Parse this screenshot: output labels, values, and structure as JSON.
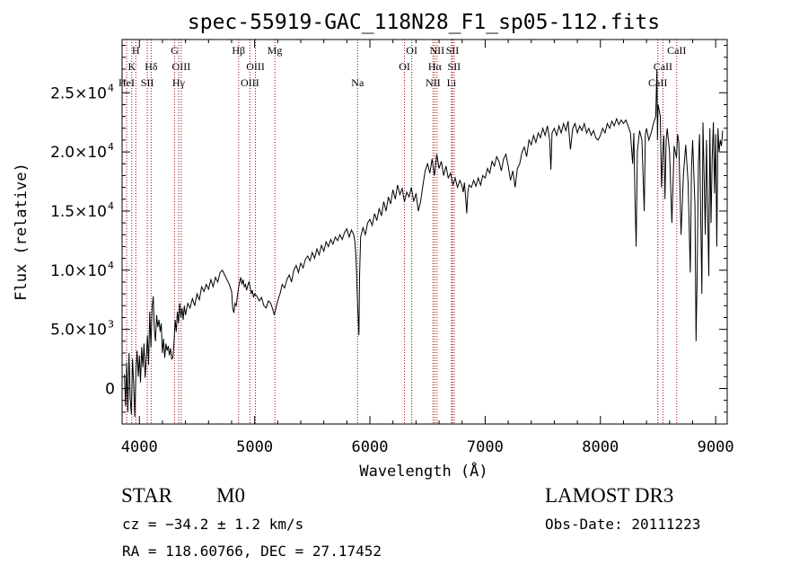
{
  "chart_data": {
    "type": "line",
    "title": "spec-55919-GAC_118N28_F1_sp05-112.fits",
    "xlabel": "Wavelength (Å)",
    "ylabel": "Flux (relative)",
    "xlim": [
      3850,
      9100
    ],
    "ylim": [
      -3000,
      29500
    ],
    "x_ticks": [
      {
        "value": 4000,
        "label": "4000"
      },
      {
        "value": 5000,
        "label": "5000"
      },
      {
        "value": 6000,
        "label": "6000"
      },
      {
        "value": 7000,
        "label": "7000"
      },
      {
        "value": 8000,
        "label": "8000"
      },
      {
        "value": 9000,
        "label": "9000"
      }
    ],
    "y_ticks": [
      {
        "value": 0,
        "mantissa": "0",
        "exponent": ""
      },
      {
        "value": 5000,
        "mantissa": "5.0×10",
        "exponent": "3"
      },
      {
        "value": 10000,
        "mantissa": "1.0×10",
        "exponent": "4"
      },
      {
        "value": 15000,
        "mantissa": "1.5×10",
        "exponent": "4"
      },
      {
        "value": 20000,
        "mantissa": "2.0×10",
        "exponent": "4"
      },
      {
        "value": 25000,
        "mantissa": "2.5×10",
        "exponent": "4"
      }
    ],
    "line_color": "#000000",
    "marker_color": "#a00000",
    "lines": [
      {
        "name": "H",
        "wavelength": 3969,
        "row": 0
      },
      {
        "name": "K",
        "wavelength": 3934,
        "row": 1
      },
      {
        "name": "HeI",
        "wavelength": 3889,
        "row": 2
      },
      {
        "name": "SII",
        "wavelength": 4069,
        "row": 2
      },
      {
        "name": "Hδ",
        "wavelength": 4102,
        "row": 1
      },
      {
        "name": "G",
        "wavelength": 4305,
        "row": 0
      },
      {
        "name": "OIII",
        "wavelength": 4363,
        "row": 1
      },
      {
        "name": "Hγ",
        "wavelength": 4340,
        "row": 2
      },
      {
        "name": "Hβ",
        "wavelength": 4861,
        "row": 0
      },
      {
        "name": "OIII",
        "wavelength": 5007,
        "row": 1
      },
      {
        "name": "OIII",
        "wavelength": 4959,
        "row": 2
      },
      {
        "name": "Mg",
        "wavelength": 5175,
        "row": 0
      },
      {
        "name": "Na",
        "wavelength": 5893,
        "row": 2
      },
      {
        "name": "OI",
        "wavelength": 6363,
        "row": 0
      },
      {
        "name": "OI",
        "wavelength": 6300,
        "row": 1
      },
      {
        "name": "NII",
        "wavelength": 6583,
        "row": 0
      },
      {
        "name": "SII",
        "wavelength": 6716,
        "row": 0
      },
      {
        "name": "Hα",
        "wavelength": 6563,
        "row": 1
      },
      {
        "name": "SII",
        "wavelength": 6731,
        "row": 1
      },
      {
        "name": "NII",
        "wavelength": 6548,
        "row": 2
      },
      {
        "name": "Li",
        "wavelength": 6708,
        "row": 2
      },
      {
        "name": "CaII",
        "wavelength": 8662,
        "row": 0
      },
      {
        "name": "CaII",
        "wavelength": 8542,
        "row": 1
      },
      {
        "name": "CaII",
        "wavelength": 8498,
        "row": 2
      }
    ],
    "spectrum": [
      [
        3870,
        1200
      ],
      [
        3880,
        -1500
      ],
      [
        3890,
        2200
      ],
      [
        3900,
        -2000
      ],
      [
        3910,
        3000
      ],
      [
        3920,
        -800
      ],
      [
        3930,
        -2200
      ],
      [
        3940,
        2500
      ],
      [
        3950,
        500
      ],
      [
        3960,
        -2400
      ],
      [
        3970,
        1500
      ],
      [
        3980,
        3200
      ],
      [
        3990,
        1000
      ],
      [
        4000,
        2800
      ],
      [
        4010,
        500
      ],
      [
        4020,
        3500
      ],
      [
        4030,
        1800
      ],
      [
        4040,
        3800
      ],
      [
        4050,
        900
      ],
      [
        4060,
        2600
      ],
      [
        4070,
        4500
      ],
      [
        4080,
        2000
      ],
      [
        4090,
        6500
      ],
      [
        4100,
        3500
      ],
      [
        4110,
        6800
      ],
      [
        4120,
        7800
      ],
      [
        4130,
        5000
      ],
      [
        4140,
        4000
      ],
      [
        4150,
        6200
      ],
      [
        4160,
        5200
      ],
      [
        4170,
        5800
      ],
      [
        4180,
        4800
      ],
      [
        4190,
        5500
      ],
      [
        4200,
        3000
      ],
      [
        4210,
        4200
      ],
      [
        4220,
        2600
      ],
      [
        4230,
        3800
      ],
      [
        4240,
        3200
      ],
      [
        4250,
        3600
      ],
      [
        4260,
        2800
      ],
      [
        4270,
        3400
      ],
      [
        4280,
        2500
      ],
      [
        4290,
        2600
      ],
      [
        4300,
        3800
      ],
      [
        4310,
        5800
      ],
      [
        4320,
        4800
      ],
      [
        4330,
        6500
      ],
      [
        4340,
        5500
      ],
      [
        4350,
        7200
      ],
      [
        4360,
        6000
      ],
      [
        4370,
        6800
      ],
      [
        4380,
        5800
      ],
      [
        4390,
        7000
      ],
      [
        4400,
        6200
      ],
      [
        4420,
        7200
      ],
      [
        4440,
        6800
      ],
      [
        4460,
        7600
      ],
      [
        4480,
        7000
      ],
      [
        4500,
        8000
      ],
      [
        4520,
        7500
      ],
      [
        4540,
        8600
      ],
      [
        4560,
        8200
      ],
      [
        4580,
        8800
      ],
      [
        4600,
        8400
      ],
      [
        4620,
        9200
      ],
      [
        4640,
        8600
      ],
      [
        4660,
        9400
      ],
      [
        4680,
        9000
      ],
      [
        4700,
        9800
      ],
      [
        4720,
        10000
      ],
      [
        4740,
        9600
      ],
      [
        4760,
        9200
      ],
      [
        4780,
        8800
      ],
      [
        4800,
        8200
      ],
      [
        4810,
        6800
      ],
      [
        4820,
        6400
      ],
      [
        4830,
        7200
      ],
      [
        4840,
        7000
      ],
      [
        4850,
        7800
      ],
      [
        4860,
        8500
      ],
      [
        4870,
        9000
      ],
      [
        4880,
        9400
      ],
      [
        4890,
        8800
      ],
      [
        4900,
        9200
      ],
      [
        4910,
        8600
      ],
      [
        4920,
        8800
      ],
      [
        4930,
        8300
      ],
      [
        4940,
        8700
      ],
      [
        4950,
        9000
      ],
      [
        4960,
        8600
      ],
      [
        4970,
        8000
      ],
      [
        4980,
        8300
      ],
      [
        4990,
        7700
      ],
      [
        5000,
        8000
      ],
      [
        5020,
        7800
      ],
      [
        5040,
        7400
      ],
      [
        5060,
        7700
      ],
      [
        5080,
        7000
      ],
      [
        5100,
        6800
      ],
      [
        5120,
        7400
      ],
      [
        5140,
        7200
      ],
      [
        5160,
        6600
      ],
      [
        5170,
        6200
      ],
      [
        5180,
        6600
      ],
      [
        5190,
        7000
      ],
      [
        5200,
        7400
      ],
      [
        5220,
        8000
      ],
      [
        5240,
        8800
      ],
      [
        5260,
        8500
      ],
      [
        5280,
        9200
      ],
      [
        5300,
        9600
      ],
      [
        5320,
        9000
      ],
      [
        5340,
        10000
      ],
      [
        5360,
        10400
      ],
      [
        5380,
        9800
      ],
      [
        5400,
        10600
      ],
      [
        5420,
        10200
      ],
      [
        5440,
        10900
      ],
      [
        5460,
        11200
      ],
      [
        5480,
        10800
      ],
      [
        5500,
        11500
      ],
      [
        5520,
        11000
      ],
      [
        5540,
        11800
      ],
      [
        5560,
        11300
      ],
      [
        5580,
        12100
      ],
      [
        5600,
        11600
      ],
      [
        5620,
        12400
      ],
      [
        5640,
        12000
      ],
      [
        5660,
        12600
      ],
      [
        5680,
        12200
      ],
      [
        5700,
        12800
      ],
      [
        5720,
        12500
      ],
      [
        5740,
        13000
      ],
      [
        5760,
        12600
      ],
      [
        5780,
        13200
      ],
      [
        5800,
        13500
      ],
      [
        5820,
        12800
      ],
      [
        5840,
        13400
      ],
      [
        5860,
        13000
      ],
      [
        5870,
        12400
      ],
      [
        5880,
        11000
      ],
      [
        5890,
        8000
      ],
      [
        5900,
        5500
      ],
      [
        5905,
        4500
      ],
      [
        5910,
        9500
      ],
      [
        5920,
        12800
      ],
      [
        5940,
        13600
      ],
      [
        5960,
        13000
      ],
      [
        5980,
        14000
      ],
      [
        6000,
        14300
      ],
      [
        6020,
        13800
      ],
      [
        6040,
        14800
      ],
      [
        6060,
        14200
      ],
      [
        6080,
        15200
      ],
      [
        6100,
        14600
      ],
      [
        6120,
        15800
      ],
      [
        6140,
        15000
      ],
      [
        6160,
        16200
      ],
      [
        6180,
        15600
      ],
      [
        6200,
        16800
      ],
      [
        6220,
        16000
      ],
      [
        6240,
        17200
      ],
      [
        6260,
        16400
      ],
      [
        6280,
        16900
      ],
      [
        6300,
        15800
      ],
      [
        6320,
        16600
      ],
      [
        6340,
        16200
      ],
      [
        6360,
        17000
      ],
      [
        6380,
        15800
      ],
      [
        6400,
        16500
      ],
      [
        6420,
        15000
      ],
      [
        6440,
        15800
      ],
      [
        6460,
        17200
      ],
      [
        6480,
        18400
      ],
      [
        6500,
        19000
      ],
      [
        6520,
        18200
      ],
      [
        6540,
        19400
      ],
      [
        6560,
        18000
      ],
      [
        6580,
        19800
      ],
      [
        6600,
        18600
      ],
      [
        6620,
        19200
      ],
      [
        6640,
        18000
      ],
      [
        6660,
        18800
      ],
      [
        6680,
        17800
      ],
      [
        6700,
        18200
      ],
      [
        6720,
        17200
      ],
      [
        6740,
        17800
      ],
      [
        6760,
        17000
      ],
      [
        6780,
        17600
      ],
      [
        6800,
        17100
      ],
      [
        6810,
        16600
      ],
      [
        6820,
        17400
      ],
      [
        6830,
        16200
      ],
      [
        6840,
        14800
      ],
      [
        6850,
        16600
      ],
      [
        6860,
        17200
      ],
      [
        6880,
        17000
      ],
      [
        6900,
        17600
      ],
      [
        6920,
        17100
      ],
      [
        6940,
        17800
      ],
      [
        6960,
        17200
      ],
      [
        6980,
        18000
      ],
      [
        7000,
        17800
      ],
      [
        7020,
        18600
      ],
      [
        7040,
        18200
      ],
      [
        7060,
        19200
      ],
      [
        7080,
        18800
      ],
      [
        7100,
        19600
      ],
      [
        7120,
        19200
      ],
      [
        7140,
        18400
      ],
      [
        7160,
        19400
      ],
      [
        7180,
        19800
      ],
      [
        7200,
        18800
      ],
      [
        7220,
        17600
      ],
      [
        7240,
        18400
      ],
      [
        7260,
        17000
      ],
      [
        7280,
        18600
      ],
      [
        7300,
        19000
      ],
      [
        7320,
        20000
      ],
      [
        7340,
        20400
      ],
      [
        7360,
        19600
      ],
      [
        7380,
        21000
      ],
      [
        7400,
        20600
      ],
      [
        7420,
        21400
      ],
      [
        7440,
        20800
      ],
      [
        7460,
        21600
      ],
      [
        7480,
        21200
      ],
      [
        7500,
        22000
      ],
      [
        7520,
        21400
      ],
      [
        7540,
        22200
      ],
      [
        7560,
        21000
      ],
      [
        7570,
        18500
      ],
      [
        7580,
        21600
      ],
      [
        7600,
        22000
      ],
      [
        7620,
        21400
      ],
      [
        7640,
        22200
      ],
      [
        7660,
        21600
      ],
      [
        7680,
        22400
      ],
      [
        7700,
        21800
      ],
      [
        7720,
        22600
      ],
      [
        7740,
        20200
      ],
      [
        7760,
        22000
      ],
      [
        7780,
        22400
      ],
      [
        7800,
        21600
      ],
      [
        7820,
        22200
      ],
      [
        7840,
        21800
      ],
      [
        7860,
        22400
      ],
      [
        7880,
        21600
      ],
      [
        7900,
        22000
      ],
      [
        7920,
        21400
      ],
      [
        7940,
        21800
      ],
      [
        7960,
        21200
      ],
      [
        7980,
        21000
      ],
      [
        8000,
        21400
      ],
      [
        8020,
        22000
      ],
      [
        8040,
        21600
      ],
      [
        8060,
        22400
      ],
      [
        8080,
        22000
      ],
      [
        8100,
        22600
      ],
      [
        8120,
        22200
      ],
      [
        8140,
        22800
      ],
      [
        8160,
        22300
      ],
      [
        8180,
        22700
      ],
      [
        8200,
        22400
      ],
      [
        8220,
        22700
      ],
      [
        8240,
        22200
      ],
      [
        8260,
        21600
      ],
      [
        8280,
        19000
      ],
      [
        8290,
        21600
      ],
      [
        8300,
        16000
      ],
      [
        8310,
        12000
      ],
      [
        8320,
        20000
      ],
      [
        8340,
        21800
      ],
      [
        8360,
        21000
      ],
      [
        8380,
        15000
      ],
      [
        8390,
        21400
      ],
      [
        8400,
        22000
      ],
      [
        8420,
        21000
      ],
      [
        8440,
        21600
      ],
      [
        8460,
        22400
      ],
      [
        8480,
        23000
      ],
      [
        8490,
        27000
      ],
      [
        8495,
        21000
      ],
      [
        8500,
        24000
      ],
      [
        8520,
        23000
      ],
      [
        8530,
        17000
      ],
      [
        8540,
        19800
      ],
      [
        8550,
        21400
      ],
      [
        8560,
        16000
      ],
      [
        8570,
        21000
      ],
      [
        8580,
        22000
      ],
      [
        8600,
        20000
      ],
      [
        8620,
        14000
      ],
      [
        8640,
        20500
      ],
      [
        8660,
        19500
      ],
      [
        8670,
        21500
      ],
      [
        8680,
        20800
      ],
      [
        8700,
        13000
      ],
      [
        8720,
        18000
      ],
      [
        8740,
        20600
      ],
      [
        8760,
        17500
      ],
      [
        8780,
        9800
      ],
      [
        8790,
        18500
      ],
      [
        8800,
        21000
      ],
      [
        8820,
        15500
      ],
      [
        8830,
        4000
      ],
      [
        8840,
        10000
      ],
      [
        8850,
        19000
      ],
      [
        8860,
        21500
      ],
      [
        8880,
        8000
      ],
      [
        8890,
        22500
      ],
      [
        8900,
        18000
      ],
      [
        8910,
        13000
      ],
      [
        8920,
        21000
      ],
      [
        8940,
        9500
      ],
      [
        8950,
        22000
      ],
      [
        8960,
        14000
      ],
      [
        8970,
        19500
      ],
      [
        8980,
        22500
      ],
      [
        8990,
        16500
      ],
      [
        9000,
        21500
      ],
      [
        9010,
        12000
      ],
      [
        9020,
        22000
      ],
      [
        9030,
        20000
      ],
      [
        9040,
        21000
      ],
      [
        9050,
        20500
      ],
      [
        9060,
        21800
      ]
    ]
  },
  "info": {
    "object_type": "STAR",
    "subclass": "M0",
    "survey": "LAMOST DR3",
    "redshift_text": "cz = −34.2 ± 1.2 km/s",
    "obs_date": "Obs-Date: 20111223",
    "coords": "RA = 118.60766, DEC =  27.17452"
  }
}
